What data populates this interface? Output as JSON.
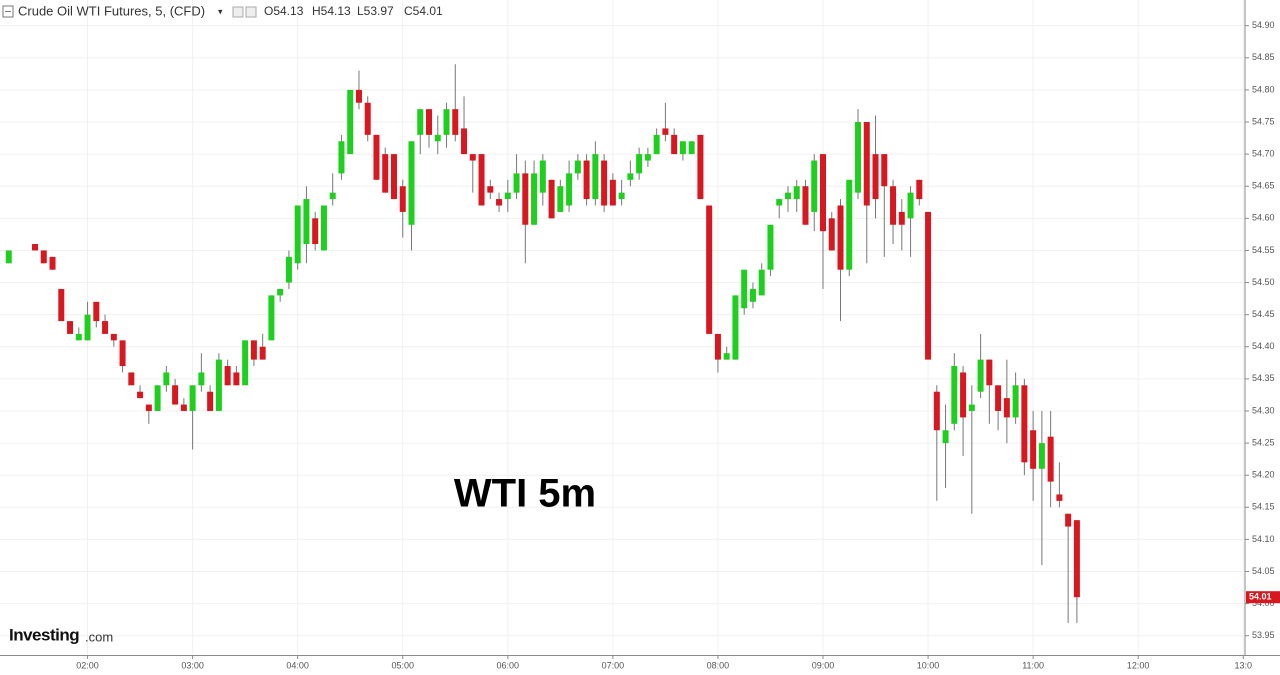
{
  "chart_data": {
    "type": "candlestick",
    "title": "Crude Oil WTI Futures, 5, (CFD)",
    "ohlc_labels": [
      "O54.13",
      "H54.13",
      "L53.97",
      "C54.01"
    ],
    "annotation": "WTI 5m",
    "logo": {
      "brand": "Investing",
      "suffix": ".com"
    },
    "last_price_label": "54.01",
    "up_color": "#1fcf1f",
    "down_color": "#d81820",
    "grid": true,
    "x": [
      "01:15",
      "01:30",
      "01:35",
      "01:40",
      "01:45",
      "01:50",
      "01:55",
      "02:00",
      "02:05",
      "02:10",
      "02:15",
      "02:20",
      "02:25",
      "02:30",
      "02:35",
      "02:40",
      "02:45",
      "02:50",
      "02:55",
      "03:00",
      "03:05",
      "03:10",
      "03:15",
      "03:20",
      "03:25",
      "03:30",
      "03:35",
      "03:40",
      "03:45",
      "03:50",
      "03:55",
      "04:00",
      "04:05",
      "04:10",
      "04:15",
      "04:20",
      "04:25",
      "04:30",
      "04:35",
      "04:40",
      "04:45",
      "04:50",
      "04:55",
      "05:00",
      "05:05",
      "05:10",
      "05:15",
      "05:20",
      "05:25",
      "05:30",
      "05:35",
      "05:40",
      "05:45",
      "05:50",
      "05:55",
      "06:00",
      "06:05",
      "06:10",
      "06:15",
      "06:20",
      "06:25",
      "06:30",
      "06:35",
      "06:40",
      "06:45",
      "06:50",
      "06:55",
      "07:00",
      "07:05",
      "07:10",
      "07:15",
      "07:20",
      "07:25",
      "07:30",
      "07:35",
      "07:40",
      "07:45",
      "07:50",
      "07:55",
      "08:00",
      "08:05",
      "08:10",
      "08:15",
      "08:20",
      "08:25",
      "08:30",
      "08:35",
      "08:40",
      "08:45",
      "08:50",
      "08:55",
      "09:00",
      "09:05",
      "09:10",
      "09:15",
      "09:20",
      "09:25",
      "09:30",
      "09:35",
      "09:40",
      "09:45",
      "09:50",
      "09:55",
      "10:00",
      "10:05",
      "10:10",
      "10:15",
      "10:20",
      "10:25",
      "10:30",
      "10:35",
      "10:40",
      "10:45",
      "10:50",
      "10:55",
      "11:00",
      "11:05",
      "11:10",
      "11:15",
      "11:20",
      "11:25"
    ],
    "open": [
      54.53,
      54.56,
      54.55,
      54.54,
      54.49,
      54.44,
      54.41,
      54.41,
      54.47,
      54.44,
      54.42,
      54.41,
      54.36,
      54.33,
      54.31,
      54.3,
      54.34,
      54.34,
      54.31,
      54.3,
      54.34,
      54.33,
      54.3,
      54.37,
      54.36,
      54.34,
      54.41,
      54.4,
      54.41,
      54.48,
      54.5,
      54.53,
      54.56,
      54.6,
      54.55,
      54.63,
      54.67,
      54.7,
      54.8,
      54.78,
      54.73,
      54.7,
      54.7,
      54.65,
      54.59,
      54.73,
      54.77,
      54.72,
      54.73,
      54.77,
      54.74,
      54.7,
      54.7,
      54.65,
      54.63,
      54.63,
      54.64,
      54.67,
      54.59,
      54.64,
      54.66,
      54.61,
      54.62,
      54.67,
      54.69,
      54.63,
      54.69,
      54.66,
      54.63,
      54.66,
      54.67,
      54.69,
      54.7,
      54.74,
      54.73,
      54.7,
      54.7,
      54.73,
      54.62,
      54.42,
      54.38,
      54.38,
      54.46,
      54.47,
      54.48,
      54.52,
      54.62,
      54.63,
      54.63,
      54.65,
      54.61,
      54.7,
      54.6,
      54.62,
      54.52,
      54.64,
      54.75,
      54.7,
      54.7,
      54.65,
      54.61,
      54.6,
      54.66,
      54.61,
      54.33,
      54.25,
      54.28,
      54.36,
      54.3,
      54.33,
      54.38,
      54.34,
      54.32,
      54.29,
      54.34,
      54.27,
      54.21,
      54.26,
      54.17,
      54.14,
      54.13
    ],
    "high": [
      54.55,
      54.56,
      54.55,
      54.54,
      54.49,
      54.44,
      54.43,
      54.47,
      54.47,
      54.45,
      54.42,
      54.41,
      54.36,
      54.34,
      54.31,
      54.34,
      54.37,
      54.35,
      54.32,
      54.34,
      54.39,
      54.34,
      54.39,
      54.38,
      54.37,
      54.41,
      54.41,
      54.42,
      54.48,
      54.49,
      54.55,
      54.62,
      54.65,
      54.61,
      54.62,
      54.67,
      54.73,
      54.8,
      54.83,
      54.79,
      54.73,
      54.71,
      54.7,
      54.66,
      54.72,
      54.77,
      54.77,
      54.76,
      54.78,
      54.84,
      54.79,
      54.7,
      54.7,
      54.66,
      54.64,
      54.66,
      54.7,
      54.69,
      54.69,
      54.7,
      54.66,
      54.66,
      54.69,
      54.7,
      54.7,
      54.72,
      54.7,
      54.67,
      54.66,
      54.69,
      54.71,
      54.71,
      54.74,
      54.78,
      54.74,
      54.72,
      54.72,
      54.73,
      54.62,
      54.42,
      54.4,
      54.48,
      54.52,
      54.5,
      54.53,
      54.59,
      54.63,
      54.65,
      54.66,
      54.66,
      54.7,
      54.7,
      54.61,
      54.63,
      54.66,
      54.77,
      54.75,
      54.76,
      54.7,
      54.66,
      54.63,
      54.65,
      54.66,
      54.61,
      54.34,
      54.31,
      54.39,
      54.37,
      54.34,
      54.42,
      54.38,
      54.34,
      54.38,
      54.36,
      54.35,
      54.3,
      54.3,
      54.3,
      54.22,
      54.14,
      54.13
    ],
    "low": [
      54.53,
      54.55,
      54.53,
      54.52,
      54.44,
      54.42,
      54.41,
      54.41,
      54.43,
      54.42,
      54.4,
      54.36,
      54.34,
      54.32,
      54.28,
      54.3,
      54.33,
      54.31,
      54.3,
      54.24,
      54.33,
      54.3,
      54.3,
      54.34,
      54.34,
      54.34,
      54.37,
      54.38,
      54.41,
      54.47,
      54.49,
      54.52,
      54.53,
      54.55,
      54.55,
      54.62,
      54.66,
      54.7,
      54.77,
      54.72,
      54.66,
      54.64,
      54.63,
      54.57,
      54.55,
      54.7,
      54.71,
      54.7,
      54.71,
      54.72,
      54.7,
      54.64,
      54.62,
      54.63,
      54.61,
      54.61,
      54.63,
      54.53,
      54.59,
      54.62,
      54.6,
      54.61,
      54.61,
      54.66,
      54.62,
      54.62,
      54.61,
      54.62,
      54.62,
      54.65,
      54.66,
      54.68,
      54.7,
      54.72,
      54.7,
      54.69,
      54.7,
      54.63,
      54.42,
      54.36,
      54.38,
      54.38,
      54.45,
      54.46,
      54.48,
      54.51,
      54.6,
      54.61,
      54.61,
      54.59,
      54.58,
      54.49,
      54.55,
      54.44,
      54.51,
      54.63,
      54.53,
      54.6,
      54.54,
      54.56,
      54.55,
      54.54,
      54.62,
      54.38,
      54.16,
      54.18,
      54.27,
      54.23,
      54.14,
      54.32,
      54.28,
      54.27,
      54.25,
      54.28,
      54.2,
      54.16,
      54.06,
      54.15,
      54.15,
      53.97,
      53.97
    ],
    "close": [
      54.55,
      54.55,
      54.53,
      54.52,
      54.44,
      54.42,
      54.42,
      54.45,
      54.44,
      54.42,
      54.41,
      54.37,
      54.34,
      54.32,
      54.3,
      54.34,
      54.36,
      54.31,
      54.3,
      54.34,
      54.36,
      54.3,
      54.38,
      54.34,
      54.34,
      54.41,
      54.38,
      54.38,
      54.48,
      54.49,
      54.54,
      54.62,
      54.63,
      54.56,
      54.62,
      54.64,
      54.72,
      54.8,
      54.78,
      54.73,
      54.66,
      54.64,
      54.63,
      54.61,
      54.72,
      54.77,
      54.73,
      54.73,
      54.77,
      54.73,
      54.7,
      54.69,
      54.62,
      54.64,
      54.62,
      54.64,
      54.67,
      54.59,
      54.67,
      54.69,
      54.6,
      54.65,
      54.67,
      54.69,
      54.63,
      54.7,
      54.62,
      54.62,
      54.64,
      54.67,
      54.7,
      54.7,
      54.73,
      54.73,
      54.7,
      54.72,
      54.72,
      54.63,
      54.42,
      54.38,
      54.39,
      54.48,
      54.52,
      54.49,
      54.52,
      54.59,
      54.63,
      54.64,
      54.65,
      54.59,
      54.69,
      54.58,
      54.55,
      54.52,
      54.66,
      54.75,
      54.62,
      54.63,
      54.65,
      54.59,
      54.59,
      54.64,
      54.63,
      54.38,
      54.27,
      54.27,
      54.37,
      54.29,
      54.31,
      54.38,
      54.34,
      54.3,
      54.29,
      54.34,
      54.22,
      54.21,
      54.25,
      54.19,
      54.16,
      54.12,
      54.01
    ],
    "xlim": [
      "01:10",
      "13:01"
    ],
    "xticks": [
      "02:00",
      "03:00",
      "04:00",
      "05:00",
      "06:00",
      "07:00",
      "08:00",
      "09:00",
      "10:00",
      "11:00",
      "12:00",
      "13:0"
    ],
    "ylim": [
      53.92,
      54.94
    ],
    "yticks": [
      {
        "value": 53.95,
        "label": "53.95"
      },
      {
        "value": 54.0,
        "label": "54.00"
      },
      {
        "value": 54.05,
        "label": "54.05"
      },
      {
        "value": 54.1,
        "label": "54.10"
      },
      {
        "value": 54.15,
        "label": "54.15"
      },
      {
        "value": 54.2,
        "label": "54.20"
      },
      {
        "value": 54.25,
        "label": "54.25"
      },
      {
        "value": 54.3,
        "label": "54.30"
      },
      {
        "value": 54.35,
        "label": "54.35"
      },
      {
        "value": 54.4,
        "label": "54.40"
      },
      {
        "value": 54.45,
        "label": "54.45"
      },
      {
        "value": 54.5,
        "label": "54.50"
      },
      {
        "value": 54.55,
        "label": "54.55"
      },
      {
        "value": 54.6,
        "label": "54.60"
      },
      {
        "value": 54.65,
        "label": "54.65"
      },
      {
        "value": 54.7,
        "label": "54.70"
      },
      {
        "value": 54.75,
        "label": "54.75"
      },
      {
        "value": 54.8,
        "label": "54.80"
      },
      {
        "value": 54.85,
        "label": "54.85"
      },
      {
        "value": 54.9,
        "label": "54.90"
      }
    ]
  }
}
